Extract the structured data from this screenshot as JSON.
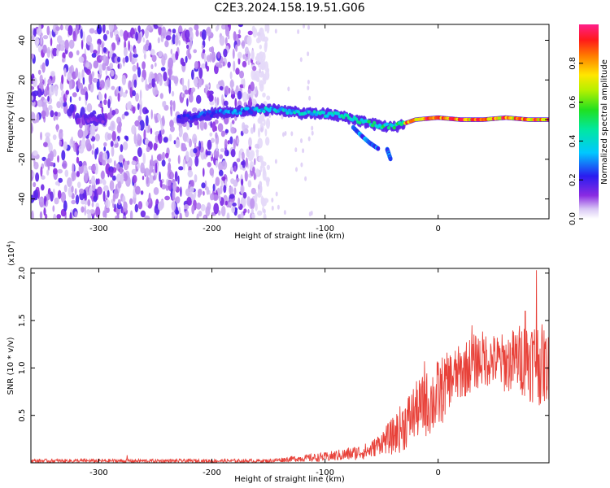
{
  "title": "C2E3.2024.158.19.51.G06",
  "chart_data": [
    {
      "type": "heatmap",
      "xlabel": "Height of straight line (km)",
      "ylabel": "Frequency (Hz)",
      "xlim": [
        -360,
        98
      ],
      "ylim": [
        -50,
        48
      ],
      "xticks": [
        -300,
        -200,
        -100,
        0
      ],
      "yticks": [
        -40,
        -20,
        0,
        20,
        40
      ],
      "colorbar": {
        "label": "Normalized spectral amplitude",
        "range": [
          0,
          1
        ],
        "ticks": [
          "0.0",
          "0.2",
          "0.4",
          "0.6",
          "0.8"
        ],
        "colormap": "rainbow (white-lavender-violet-blue-cyan-green-yellow-red-magenta)"
      },
      "ridge": [
        {
          "x": -300,
          "y": 0
        },
        {
          "x": -220,
          "y": 1
        },
        {
          "x": -200,
          "y": 3
        },
        {
          "x": -160,
          "y": 5
        },
        {
          "x": -140,
          "y": 5
        },
        {
          "x": -120,
          "y": 3
        },
        {
          "x": -100,
          "y": 3
        },
        {
          "x": -80,
          "y": 1
        },
        {
          "x": -60,
          "y": -2
        },
        {
          "x": -40,
          "y": -4
        },
        {
          "x": -20,
          "y": 0
        },
        {
          "x": 0,
          "y": 1
        },
        {
          "x": 20,
          "y": 0
        },
        {
          "x": 40,
          "y": 0
        },
        {
          "x": 60,
          "y": 1
        },
        {
          "x": 80,
          "y": 0
        },
        {
          "x": 98,
          "y": 0
        }
      ],
      "branches": [
        {
          "x": [
            -75,
            -68,
            -60,
            -52
          ],
          "y": [
            -4,
            -8,
            -12,
            -15
          ]
        },
        {
          "x": [
            -45,
            -42
          ],
          "y": [
            -15,
            -20
          ]
        }
      ],
      "noise_region_x": [
        -360,
        -150
      ]
    },
    {
      "type": "line",
      "xlabel": "Height of straight line (km)",
      "ylabel": "SNR (10 * v/v)",
      "multiplier": "(x10",
      "multiplier_exp": "4",
      "multiplier_close": ")",
      "xlim": [
        -360,
        98
      ],
      "ylim": [
        0,
        2.05
      ],
      "xticks": [
        -300,
        -200,
        -100,
        0
      ],
      "yticks": [
        0.5,
        1.0,
        1.5,
        2.0
      ],
      "ytick_labels": [
        "0.5",
        "1.0",
        "1.5",
        "2.0"
      ],
      "color": "#e8423a",
      "envelope_x": [
        -360,
        -300,
        -200,
        -150,
        -130,
        -100,
        -80,
        -60,
        -50,
        -40,
        -30,
        -20,
        -10,
        0,
        10,
        20,
        30,
        40,
        50,
        60,
        70,
        80,
        90,
        98
      ],
      "envelope_mean": [
        0.02,
        0.02,
        0.02,
        0.02,
        0.04,
        0.06,
        0.09,
        0.13,
        0.22,
        0.28,
        0.4,
        0.55,
        0.62,
        0.7,
        0.88,
        0.95,
        1.05,
        1.1,
        1.08,
        1.05,
        1.1,
        1.1,
        1.05,
        1.0
      ],
      "envelope_amp": [
        0.02,
        0.02,
        0.02,
        0.02,
        0.03,
        0.05,
        0.07,
        0.09,
        0.12,
        0.2,
        0.28,
        0.3,
        0.35,
        0.4,
        0.3,
        0.3,
        0.3,
        0.3,
        0.28,
        0.32,
        0.35,
        0.45,
        0.45,
        0.35
      ],
      "peaks": [
        {
          "x": -275,
          "y": 0.08
        },
        {
          "x": -12,
          "y": 1.07
        },
        {
          "x": 30,
          "y": 1.45
        },
        {
          "x": 77,
          "y": 1.6
        },
        {
          "x": 87,
          "y": 2.03
        }
      ]
    }
  ]
}
